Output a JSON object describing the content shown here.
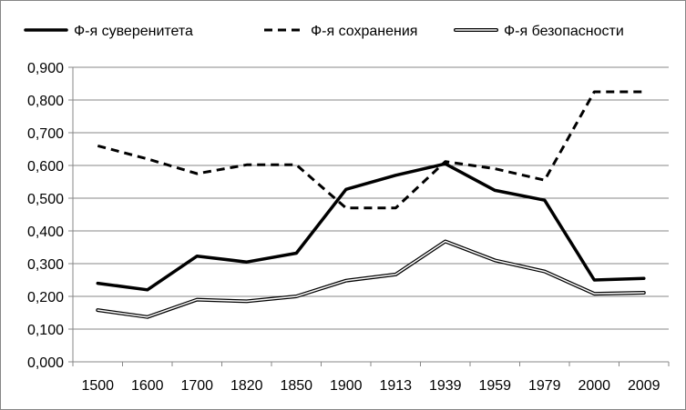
{
  "chart_data": {
    "type": "line",
    "categories": [
      "1500",
      "1600",
      "1700",
      "1820",
      "1850",
      "1900",
      "1913",
      "1939",
      "1959",
      "1979",
      "2000",
      "2009"
    ],
    "series": [
      {
        "name": "Ф-я суверенитета",
        "style": "solid-thick",
        "color": "#000000",
        "values": [
          0.24,
          0.22,
          0.323,
          0.305,
          0.332,
          0.527,
          0.57,
          0.605,
          0.524,
          0.494,
          0.25,
          0.255
        ]
      },
      {
        "name": "Ф-я сохранения",
        "style": "dashed",
        "color": "#000000",
        "values": [
          0.66,
          0.62,
          0.575,
          0.602,
          0.602,
          0.47,
          0.47,
          0.612,
          0.59,
          0.555,
          0.825,
          0.825
        ]
      },
      {
        "name": "Ф-я безопасности",
        "style": "double-line",
        "color": "#000000",
        "values": [
          0.158,
          0.137,
          0.19,
          0.185,
          0.2,
          0.248,
          0.267,
          0.368,
          0.31,
          0.276,
          0.208,
          0.211
        ]
      }
    ],
    "ylim": [
      0,
      0.9
    ],
    "yticks": [
      "0,000",
      "0,100",
      "0,200",
      "0,300",
      "0,400",
      "0,500",
      "0,600",
      "0,700",
      "0,800",
      "0,900"
    ],
    "title": "",
    "xlabel": "",
    "ylabel": "",
    "grid": "horizontal",
    "legend": "top"
  }
}
